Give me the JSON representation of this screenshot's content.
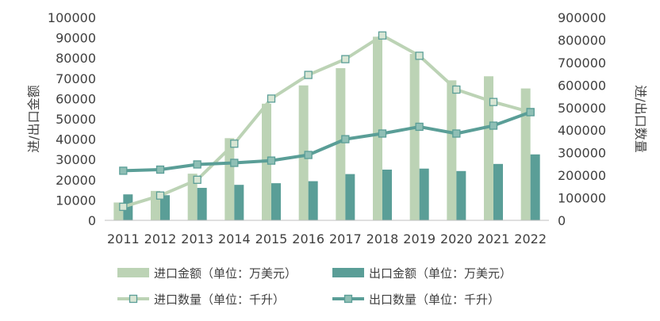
{
  "chart_data": {
    "type": "bar",
    "categories": [
      "2011",
      "2012",
      "2013",
      "2014",
      "2015",
      "2016",
      "2017",
      "2018",
      "2019",
      "2020",
      "2021",
      "2022"
    ],
    "y_left": {
      "label": "进/出口金额",
      "range": [
        0,
        100000
      ],
      "ticks": [
        "0",
        "10000",
        "20000",
        "30000",
        "40000",
        "50000",
        "60000",
        "70000",
        "80000",
        "90000",
        "100000"
      ]
    },
    "y_right": {
      "label": "进/出口数量",
      "range": [
        0,
        900000
      ],
      "ticks": [
        "0",
        "100000",
        "200000",
        "300000",
        "400000",
        "500000",
        "600000",
        "700000",
        "800000",
        "900000"
      ]
    },
    "series": [
      {
        "name": "进口金额（单位：万美元）",
        "kind": "bar",
        "axis": "left",
        "color": "#bcd3b5",
        "values": [
          8800,
          14500,
          23000,
          40500,
          57500,
          66500,
          75000,
          90500,
          82000,
          69000,
          71000,
          65000
        ]
      },
      {
        "name": "出口金额（单位：万美元）",
        "kind": "bar",
        "axis": "left",
        "color": "#5a9e97",
        "values": [
          12800,
          12400,
          16000,
          17500,
          18300,
          19300,
          22800,
          25000,
          25500,
          24300,
          27800,
          32500
        ]
      },
      {
        "name": "进口数量（单位：千升）",
        "kind": "line",
        "axis": "right",
        "color": "#bcd3b5",
        "marker_fill": "#d8e6d4",
        "marker_stroke": "#5a9e97",
        "values": [
          60000,
          110000,
          180000,
          340000,
          540000,
          645000,
          715000,
          820000,
          730000,
          580000,
          525000,
          480000
        ]
      },
      {
        "name": "出口数量（单位：千升）",
        "kind": "line",
        "axis": "right",
        "color": "#5a9e97",
        "marker_fill": "#8fbfb5",
        "marker_stroke": "#5a9e97",
        "values": [
          220000,
          225000,
          248000,
          255000,
          265000,
          290000,
          360000,
          385000,
          415000,
          385000,
          420000,
          480000
        ]
      }
    ],
    "grid": false,
    "legend_position": "bottom"
  }
}
